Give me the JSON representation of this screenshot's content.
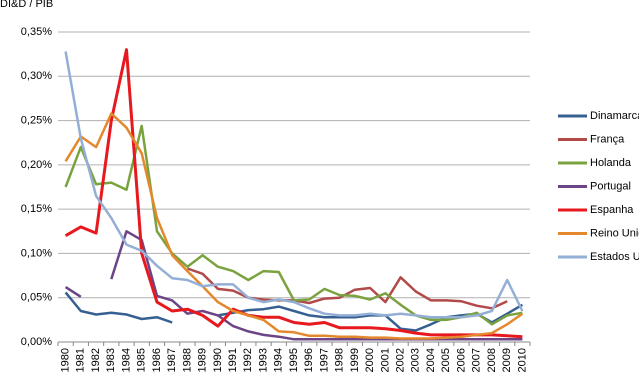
{
  "chart_data": {
    "type": "line",
    "title": "DI&D / PIB",
    "categories": [
      "1980",
      "1981",
      "1982",
      "1983",
      "1984",
      "1985",
      "1986",
      "1987",
      "1988",
      "1989",
      "1990",
      "1991",
      "1992",
      "1993",
      "1994",
      "1995",
      "1996",
      "1997",
      "1998",
      "1999",
      "2000",
      "2001",
      "2002",
      "2003",
      "2004",
      "2005",
      "2006",
      "2007",
      "2008",
      "2009",
      "2010"
    ],
    "ylim": [
      0,
      0.35
    ],
    "yticks": [
      {
        "value": 0,
        "label": "0,00%"
      },
      {
        "value": 0.05,
        "label": "0,05%"
      },
      {
        "value": 0.1,
        "label": "0,10%"
      },
      {
        "value": 0.15,
        "label": "0,15%"
      },
      {
        "value": 0.2,
        "label": "0,20%"
      },
      {
        "value": 0.25,
        "label": "0,25%"
      },
      {
        "value": 0.3,
        "label": "0,30%"
      },
      {
        "value": 0.35,
        "label": "0,35%"
      }
    ],
    "grid": true,
    "legend": "right",
    "series": [
      {
        "name": "Dinamarca",
        "color": "#376092",
        "values": [
          0.056,
          0.035,
          0.031,
          0.033,
          0.031,
          0.026,
          0.028,
          0.022,
          null,
          null,
          0.03,
          0.033,
          0.036,
          0.037,
          0.04,
          0.035,
          0.03,
          0.028,
          0.028,
          0.028,
          0.03,
          0.03,
          0.015,
          0.013,
          0.02,
          0.028,
          0.03,
          0.032,
          0.022,
          0.032,
          0.042
        ]
      },
      {
        "name": "França",
        "color": "#b24a4a",
        "values": [
          null,
          null,
          null,
          null,
          null,
          null,
          null,
          null,
          0.083,
          0.077,
          0.06,
          0.058,
          0.05,
          0.048,
          0.047,
          0.047,
          0.044,
          0.049,
          0.05,
          0.059,
          0.061,
          0.045,
          0.073,
          0.057,
          0.047,
          0.047,
          0.046,
          0.041,
          0.038,
          0.046,
          null
        ]
      },
      {
        "name": "Holanda",
        "color": "#7aa33f",
        "values": [
          0.175,
          0.22,
          0.178,
          0.18,
          0.172,
          0.244,
          0.125,
          0.1,
          0.085,
          0.098,
          0.085,
          0.08,
          0.07,
          0.08,
          0.079,
          0.047,
          0.048,
          0.06,
          0.053,
          0.052,
          0.048,
          0.055,
          0.042,
          0.03,
          0.025,
          0.025,
          0.028,
          0.033,
          0.02,
          0.03,
          0.033
        ]
      },
      {
        "name": "Portugal",
        "color": "#6b4586",
        "values": [
          0.062,
          0.051,
          null,
          0.071,
          0.125,
          0.115,
          0.052,
          0.047,
          0.032,
          0.035,
          0.03,
          0.018,
          0.012,
          0.008,
          0.006,
          0.003,
          0.003,
          0.003,
          0.003,
          0.003,
          0.003,
          0.003,
          0.003,
          0.003,
          0.003,
          0.003,
          0.003,
          0.003,
          0.003,
          0.003,
          0.003
        ]
      },
      {
        "name": "Espanha",
        "color": "#e8191e",
        "values": [
          0.12,
          0.13,
          0.123,
          0.25,
          0.33,
          0.1,
          0.045,
          0.035,
          0.037,
          0.03,
          0.018,
          0.037,
          0.03,
          0.028,
          0.028,
          0.022,
          0.02,
          0.022,
          0.016,
          0.016,
          0.016,
          0.015,
          0.013,
          0.01,
          0.008,
          0.008,
          0.008,
          0.008,
          0.008,
          0.007,
          0.006
        ]
      },
      {
        "name": "Reino Unido",
        "color": "#e3882c",
        "values": [
          0.204,
          0.232,
          0.22,
          0.258,
          0.242,
          0.213,
          0.14,
          0.098,
          0.08,
          0.063,
          0.045,
          0.035,
          0.03,
          0.025,
          0.012,
          0.011,
          0.007,
          0.007,
          0.006,
          0.006,
          0.005,
          0.005,
          0.004,
          0.004,
          0.004,
          0.005,
          0.006,
          0.008,
          0.01,
          0.02,
          0.032
        ]
      },
      {
        "name": "Estados Unidos",
        "color": "#94afd6",
        "values": [
          0.328,
          0.23,
          0.165,
          0.14,
          0.11,
          0.103,
          0.086,
          0.072,
          0.07,
          0.063,
          0.065,
          0.065,
          0.05,
          0.045,
          0.048,
          0.045,
          0.038,
          0.032,
          0.03,
          0.03,
          0.032,
          0.03,
          0.032,
          0.03,
          0.028,
          0.028,
          0.028,
          0.03,
          0.035,
          0.07,
          0.035
        ]
      }
    ]
  }
}
